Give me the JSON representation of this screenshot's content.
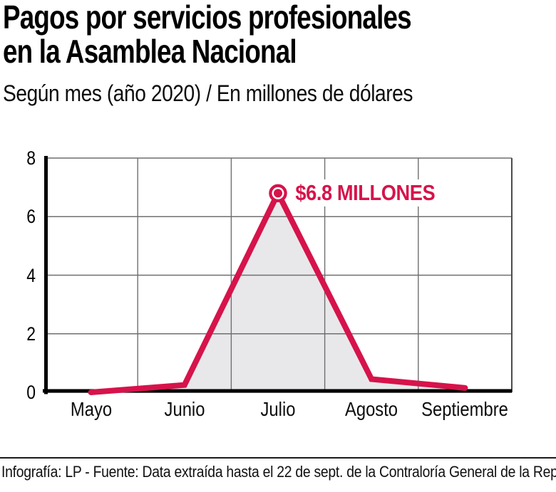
{
  "header": {
    "title": "Pagos por servicios profesionales\nen la Asamblea Nacional",
    "subtitle": "Según mes (año 2020) / En millones de dólares"
  },
  "chart_data": {
    "type": "area",
    "title": "Pagos por servicios profesionales en la Asamblea Nacional",
    "subtitle": "Según mes (año 2020) / En millones de dólares",
    "categories": [
      "Mayo",
      "Junio",
      "Julio",
      "Agosto",
      "Septiembre"
    ],
    "values": [
      0,
      0.25,
      6.8,
      0.45,
      0.15
    ],
    "xlabel": "",
    "ylabel": "",
    "ylim": [
      0,
      8
    ],
    "y_ticks": [
      8,
      6,
      4,
      2,
      0
    ],
    "grid": true,
    "legend": "none",
    "annotation": {
      "text": "$6.8 MILLONES",
      "category": "Julio",
      "value": 6.8
    },
    "colors": {
      "line": "#d6134b",
      "area": "#e8e8ea",
      "grid": "#6f6f6f",
      "border": "#4c4c4c",
      "axis": "#000000"
    }
  },
  "footer": {
    "credit": "Infografía: LP - Fuente: Data extraída hasta el 22 de sept. de la Contraloría General de la Rep."
  }
}
